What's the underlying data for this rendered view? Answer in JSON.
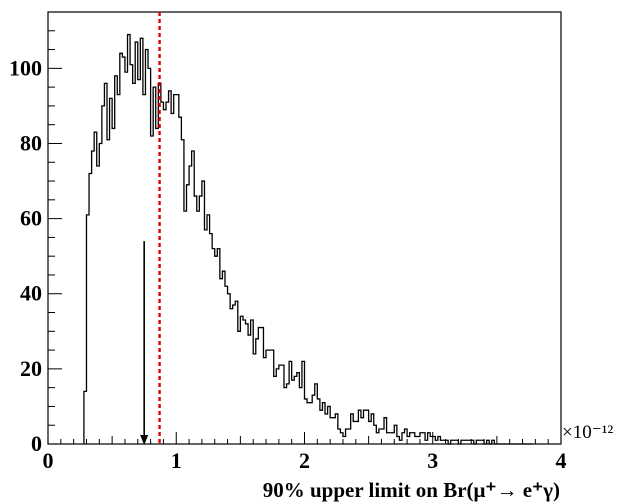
{
  "chart_data": {
    "type": "histogram",
    "xlabel": "90% upper limit on Br(μ⁺→ e⁺γ)",
    "x_multiplier": "×10⁻¹²",
    "ylabel": "",
    "xlim": [
      0,
      4
    ],
    "ylim": [
      0,
      115
    ],
    "xticks": [
      "0",
      "1",
      "2",
      "3",
      "4"
    ],
    "yticks": [
      "0",
      "20",
      "40",
      "60",
      "80",
      "100"
    ],
    "xtick_values": [
      0,
      1,
      2,
      3,
      4
    ],
    "ytick_values": [
      0,
      20,
      40,
      60,
      80,
      100
    ],
    "grid": false,
    "bin_start": 0.28,
    "bin_width": 0.02,
    "counts": [
      14,
      61,
      72,
      78,
      83,
      74,
      80,
      90,
      96,
      81,
      92,
      84,
      98,
      93,
      104,
      103,
      99,
      109,
      101,
      96,
      107,
      97,
      108,
      93,
      105,
      100,
      82,
      95,
      84,
      96,
      91,
      89,
      91,
      94,
      88,
      93,
      93,
      87,
      81,
      62,
      69,
      74,
      78,
      66,
      62,
      66,
      70,
      57,
      61,
      56,
      52,
      50,
      52,
      44,
      46,
      42,
      40,
      36,
      37,
      38,
      30,
      34,
      33,
      32,
      29,
      33,
      24,
      28,
      31,
      31,
      23,
      25,
      25,
      25,
      18,
      20,
      21,
      21,
      15,
      16,
      22,
      17,
      18,
      19,
      15,
      22,
      12,
      11,
      11,
      13,
      16,
      12,
      9,
      11,
      8,
      10,
      7,
      7,
      8,
      4,
      3,
      2,
      4,
      4,
      8,
      6,
      6,
      9,
      7,
      9,
      9,
      6,
      8,
      5,
      3,
      4,
      4,
      7,
      3,
      3,
      3,
      5,
      2,
      1,
      3,
      4,
      2,
      3,
      3,
      2,
      2,
      3,
      3,
      1,
      3,
      2,
      2,
      1,
      2,
      1,
      1,
      1,
      0,
      1,
      1,
      1,
      0,
      1,
      1,
      1,
      1,
      1,
      0,
      1,
      1,
      1,
      0,
      1,
      0,
      1,
      0,
      0,
      0,
      0,
      0,
      0,
      0,
      0,
      0,
      0,
      0,
      0,
      0,
      0,
      0
    ],
    "arrow_marker": {
      "x": 0.75,
      "y_top": 54,
      "color": "#000000"
    },
    "dashed_line": {
      "x": 0.87,
      "color": "#e00000"
    },
    "line_color": "#000000"
  }
}
